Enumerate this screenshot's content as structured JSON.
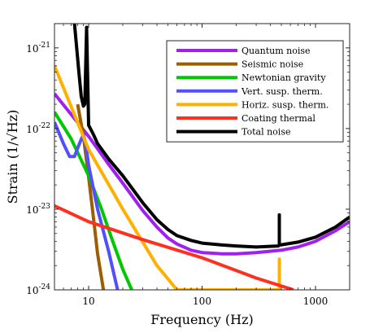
{
  "chart_data": {
    "type": "line",
    "title": "",
    "xlabel": "Frequency (Hz)",
    "ylabel": "Strain (1/√Hz)",
    "xscale": "log",
    "yscale": "log",
    "xlim": [
      5,
      2000
    ],
    "ylim": [
      1e-24,
      2e-21
    ],
    "grid": false,
    "legend": "top-right",
    "x_ticks": [
      {
        "value": 10,
        "label": "10"
      },
      {
        "value": 100,
        "label": "100"
      },
      {
        "value": 1000,
        "label": "1000"
      }
    ],
    "y_ticks": [
      {
        "value": 1e-24,
        "base": "10",
        "exp": "-24"
      },
      {
        "value": 1e-23,
        "base": "10",
        "exp": "-23"
      },
      {
        "value": 1e-22,
        "base": "10",
        "exp": "-22"
      },
      {
        "value": 1e-21,
        "base": "10",
        "exp": "-21"
      }
    ],
    "series": [
      {
        "name": "Quantum noise",
        "color": "#a020f0",
        "x": [
          5,
          7,
          10,
          15,
          20,
          30,
          40,
          50,
          60,
          80,
          100,
          150,
          200,
          300,
          500,
          700,
          1000,
          1500,
          2000
        ],
        "y": [
          2.7e-22,
          1.5e-22,
          8e-23,
          3.6e-23,
          2.1e-23,
          9.6e-24,
          6e-24,
          4.4e-24,
          3.7e-24,
          3.1e-24,
          2.9e-24,
          2.8e-24,
          2.8e-24,
          2.9e-24,
          3.1e-24,
          3.4e-24,
          4e-24,
          5.4e-24,
          7e-24
        ]
      },
      {
        "name": "Seismic noise",
        "color": "#9c5e00",
        "x": [
          8,
          9,
          10,
          11,
          12,
          13.5
        ],
        "y": [
          2e-22,
          8e-23,
          2.5e-23,
          8e-24,
          2.8e-24,
          1e-24
        ]
      },
      {
        "name": "Newtonian gravity",
        "color": "#00c800",
        "x": [
          5,
          7,
          10,
          13,
          16,
          20,
          24
        ],
        "y": [
          1.6e-22,
          7.5e-23,
          2.6e-23,
          1e-23,
          4.3e-24,
          1.8e-24,
          1e-24
        ]
      },
      {
        "name": "Vert. susp. therm.",
        "color": "#5050ff",
        "x": [
          5,
          6,
          6.8,
          7.5,
          8.3,
          9,
          9.5,
          10,
          12,
          15,
          18
        ],
        "y": [
          1.2e-22,
          6.5e-23,
          4.5e-23,
          4.5e-23,
          6.5e-23,
          8.5e-23,
          6e-23,
          3.5e-23,
          1e-23,
          3e-24,
          1e-24
        ]
      },
      {
        "name": "Horiz. susp. therm.",
        "color": "#ffb000",
        "x": [
          5,
          10,
          20,
          40,
          60,
          480,
          480,
          480,
          500
        ],
        "y": [
          6e-22,
          5.5e-23,
          1e-23,
          2e-24,
          1e-24,
          1e-24,
          2.4e-24,
          1e-24,
          1e-24
        ]
      },
      {
        "name": "Coating thermal",
        "color": "#ff3020",
        "x": [
          5,
          10,
          30,
          100,
          300,
          640
        ],
        "y": [
          1.1e-23,
          7e-24,
          4.2e-24,
          2.5e-24,
          1.4e-24,
          1e-24
        ]
      },
      {
        "name": "Total noise",
        "color": "#000000",
        "x": [
          7.5,
          8.2,
          8.6,
          9,
          9.25,
          9.6,
          10,
          11,
          12,
          15,
          20,
          30,
          40,
          50,
          60,
          80,
          100,
          150,
          200,
          300,
          470,
          480,
          480,
          480,
          490,
          700,
          1000,
          1500,
          2000
        ],
        "y": [
          2e-21,
          5e-22,
          2.5e-22,
          1.9e-22,
          2e-22,
          1.8e-21,
          1.1e-22,
          8.5e-23,
          6.5e-23,
          4.2e-23,
          2.6e-23,
          1.2e-23,
          7.4e-24,
          5.6e-24,
          4.7e-24,
          4.1e-24,
          3.8e-24,
          3.6e-24,
          3.5e-24,
          3.4e-24,
          3.5e-24,
          3.6e-24,
          8.5e-24,
          3.6e-24,
          3.6e-24,
          3.9e-24,
          4.5e-24,
          6e-24,
          8e-24
        ]
      }
    ]
  }
}
